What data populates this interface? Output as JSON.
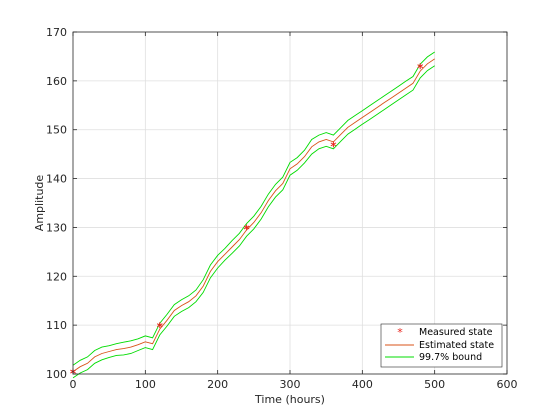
{
  "chart_data": {
    "type": "line",
    "title": "",
    "xlabel": "Time (hours)",
    "ylabel": "Amplitude",
    "xlim": [
      0,
      600
    ],
    "ylim": [
      100,
      170
    ],
    "xticks": [
      0,
      100,
      200,
      300,
      400,
      500,
      600
    ],
    "yticks": [
      100,
      110,
      120,
      130,
      140,
      150,
      160,
      170
    ],
    "grid": true,
    "legend_position": "bottom-right",
    "series": [
      {
        "name": "Measured state",
        "style": "marker",
        "marker": "asterisk",
        "color": "#e8241c",
        "x": [
          0,
          120,
          240,
          360,
          480
        ],
        "y": [
          100.5,
          110.0,
          130.0,
          147.0,
          163.0
        ]
      },
      {
        "name": "Estimated state",
        "style": "line",
        "color": "#d95319",
        "x": [
          0,
          10,
          20,
          30,
          40,
          50,
          60,
          70,
          80,
          90,
          100,
          110,
          120,
          130,
          140,
          150,
          160,
          170,
          180,
          190,
          200,
          210,
          220,
          230,
          240,
          250,
          260,
          270,
          280,
          290,
          300,
          310,
          320,
          330,
          340,
          350,
          360,
          370,
          380,
          390,
          400,
          410,
          420,
          430,
          440,
          450,
          460,
          470,
          480,
          490,
          500
        ],
        "y": [
          100.5,
          101.5,
          102.2,
          103.5,
          104.2,
          104.6,
          105.0,
          105.2,
          105.5,
          106.0,
          106.6,
          106.2,
          109.2,
          111.0,
          113.0,
          114.0,
          114.8,
          116.0,
          118.0,
          121.0,
          123.0,
          124.5,
          126.0,
          127.5,
          129.5,
          131.0,
          133.0,
          135.5,
          137.5,
          139.0,
          142.0,
          143.0,
          144.5,
          146.5,
          147.5,
          148.0,
          147.5,
          149.0,
          150.5,
          151.5,
          152.5,
          153.5,
          154.5,
          155.5,
          156.5,
          157.5,
          158.5,
          159.5,
          162.0,
          163.5,
          164.5
        ]
      },
      {
        "name": "99.7% bound",
        "style": "band",
        "color": "#00dc00",
        "x": [
          0,
          10,
          20,
          30,
          40,
          50,
          60,
          70,
          80,
          90,
          100,
          110,
          120,
          130,
          140,
          150,
          160,
          170,
          180,
          190,
          200,
          210,
          220,
          230,
          240,
          250,
          260,
          270,
          280,
          290,
          300,
          310,
          320,
          330,
          340,
          350,
          360,
          370,
          380,
          390,
          400,
          410,
          420,
          430,
          440,
          450,
          460,
          470,
          480,
          490,
          500
        ],
        "upper": [
          101.8,
          102.8,
          103.5,
          104.8,
          105.5,
          105.8,
          106.2,
          106.5,
          106.8,
          107.2,
          107.8,
          107.4,
          110.4,
          112.2,
          114.2,
          115.2,
          116.0,
          117.2,
          119.3,
          122.3,
          124.3,
          125.7,
          127.3,
          128.8,
          130.8,
          132.3,
          134.3,
          136.8,
          138.8,
          140.3,
          143.3,
          144.3,
          145.8,
          148.0,
          148.9,
          149.4,
          148.9,
          150.4,
          151.9,
          152.9,
          153.9,
          154.9,
          155.9,
          156.9,
          157.9,
          158.9,
          159.9,
          160.9,
          163.4,
          164.9,
          165.9
        ],
        "lower": [
          99.2,
          100.2,
          100.9,
          102.2,
          102.9,
          103.4,
          103.8,
          103.9,
          104.2,
          104.8,
          105.4,
          105.0,
          108.0,
          109.8,
          111.8,
          112.8,
          113.6,
          114.8,
          116.7,
          119.7,
          121.7,
          123.3,
          124.7,
          126.2,
          128.2,
          129.7,
          131.7,
          134.2,
          136.2,
          137.7,
          140.7,
          141.7,
          143.2,
          145.0,
          146.1,
          146.6,
          146.1,
          147.6,
          149.1,
          150.1,
          151.1,
          152.1,
          153.1,
          154.1,
          155.1,
          156.1,
          157.1,
          158.1,
          160.6,
          162.1,
          163.1
        ]
      }
    ]
  }
}
